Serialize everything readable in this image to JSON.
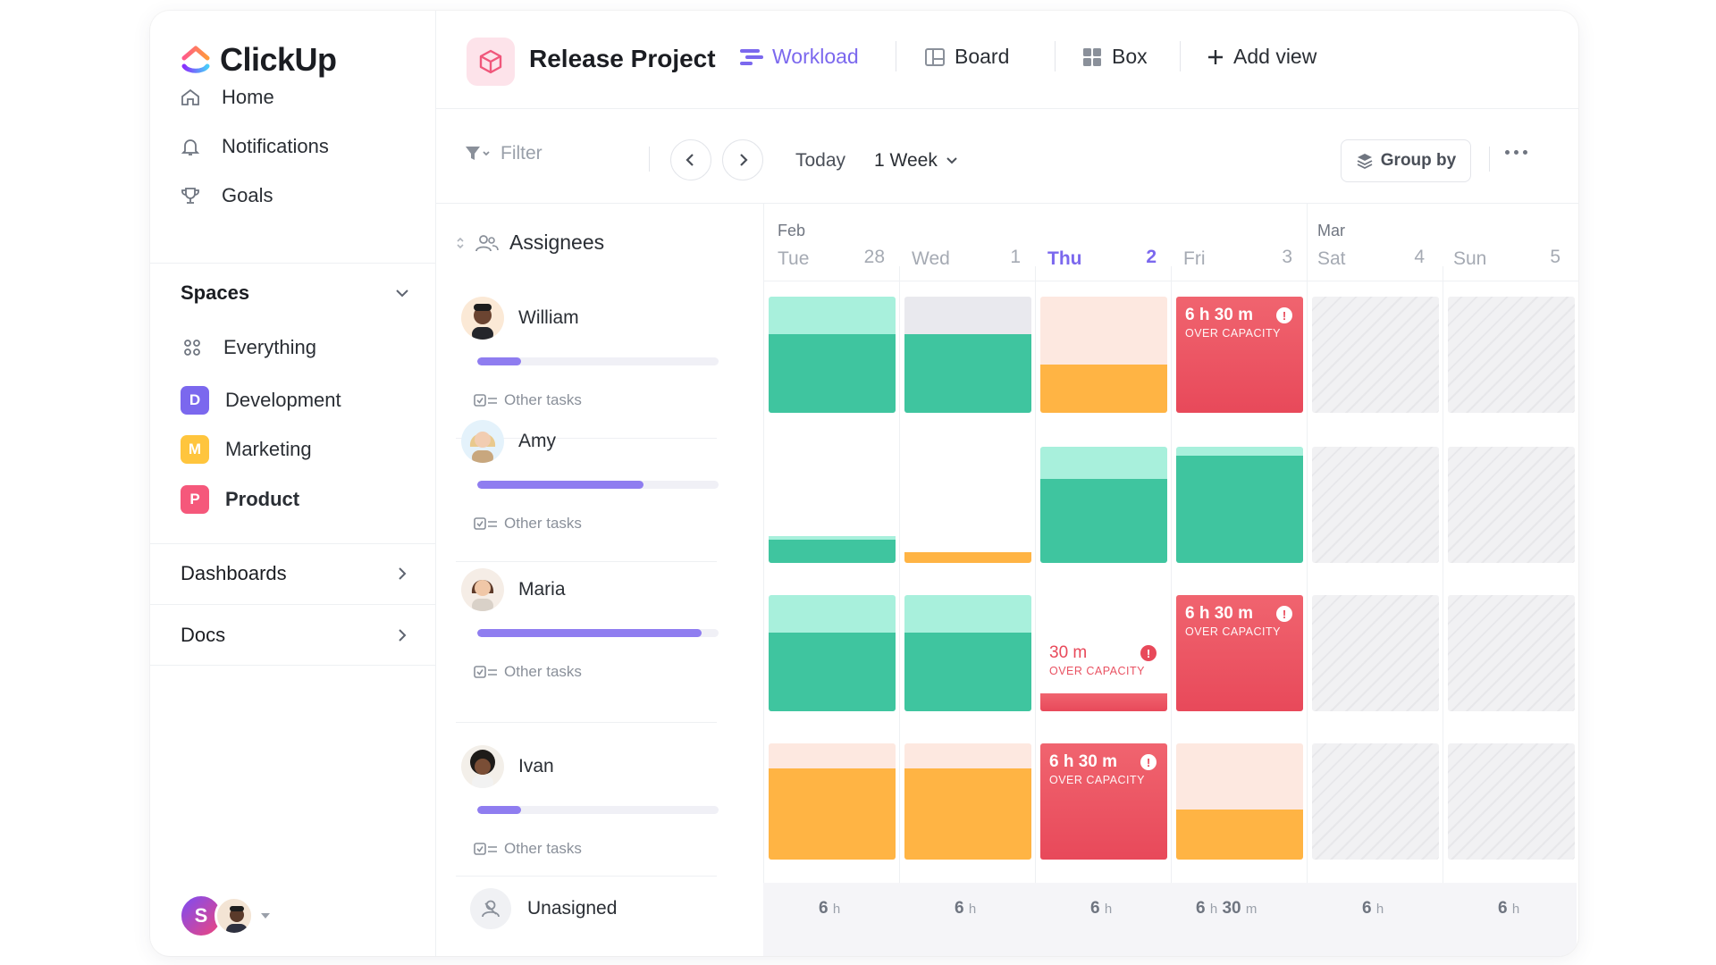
{
  "app": {
    "brand": "ClickUp"
  },
  "sidebar": {
    "nav": [
      {
        "label": "Home",
        "icon": "home-icon"
      },
      {
        "label": "Notifications",
        "icon": "bell-icon"
      },
      {
        "label": "Goals",
        "icon": "trophy-icon"
      }
    ],
    "spaces_title": "Spaces",
    "spaces": [
      {
        "label": "Everything",
        "icon": "grid-dots-icon"
      },
      {
        "label": "Development",
        "badge": "D",
        "color": "#7b68ee"
      },
      {
        "label": "Marketing",
        "badge": "M",
        "color": "#ffc53d"
      },
      {
        "label": "Product",
        "badge": "P",
        "color": "#f5587b"
      }
    ],
    "dashboards": "Dashboards",
    "docs": "Docs",
    "user_initial": "S"
  },
  "header": {
    "project_title": "Release Project",
    "tabs": [
      {
        "label": "Workload",
        "icon": "workload-icon",
        "active": true
      },
      {
        "label": "Board",
        "icon": "board-icon",
        "active": false
      },
      {
        "label": "Box",
        "icon": "box-icon",
        "active": false
      },
      {
        "label": "Add view",
        "icon": "plus-icon",
        "active": false
      }
    ]
  },
  "toolbar": {
    "filter_placeholder": "Filter",
    "today": "Today",
    "range": "1 Week",
    "group_by": "Group by"
  },
  "calendar": {
    "assignees_label": "Assignees",
    "months": [
      "Feb",
      "Mar"
    ],
    "days": [
      {
        "name": "Tue",
        "num": "28",
        "today": false
      },
      {
        "name": "Wed",
        "num": "1",
        "today": false
      },
      {
        "name": "Thu",
        "num": "2",
        "today": true
      },
      {
        "name": "Fri",
        "num": "3",
        "today": false
      },
      {
        "name": "Sat",
        "num": "4",
        "today": false
      },
      {
        "name": "Sun",
        "num": "5",
        "today": false
      }
    ],
    "other_tasks_label": "Other tasks",
    "over_capacity_label": "OVER CAPACITY",
    "people": [
      {
        "name": "William",
        "progress": 0.18
      },
      {
        "name": "Amy",
        "progress": 0.69
      },
      {
        "name": "Maria",
        "progress": 0.93
      },
      {
        "name": "Ivan",
        "progress": 0.18
      }
    ],
    "unassigned_label": "Unasigned",
    "over_values": {
      "william_fri": "6 h 30 m",
      "maria_thu": "30 m",
      "maria_fri": "6 h 30 m",
      "ivan_thu": "6 h 30 m"
    },
    "totals": [
      {
        "h": "6",
        "unit": "h",
        "m": "",
        "munit": ""
      },
      {
        "h": "6",
        "unit": "h",
        "m": "",
        "munit": ""
      },
      {
        "h": "6",
        "unit": "h",
        "m": "",
        "munit": ""
      },
      {
        "h": "6",
        "unit": "h",
        "m": "30",
        "munit": "m"
      },
      {
        "h": "6",
        "unit": "h",
        "m": "",
        "munit": ""
      },
      {
        "h": "6",
        "unit": "h",
        "m": "",
        "munit": ""
      }
    ]
  },
  "colors": {
    "accent": "#7b68ee",
    "green": "#3fc59f",
    "green_light": "#a8f0dc",
    "orange": "#ffb444",
    "orange_light": "#fde8e0",
    "red": "#e8495a",
    "gray_cap": "#e9e9ee"
  }
}
